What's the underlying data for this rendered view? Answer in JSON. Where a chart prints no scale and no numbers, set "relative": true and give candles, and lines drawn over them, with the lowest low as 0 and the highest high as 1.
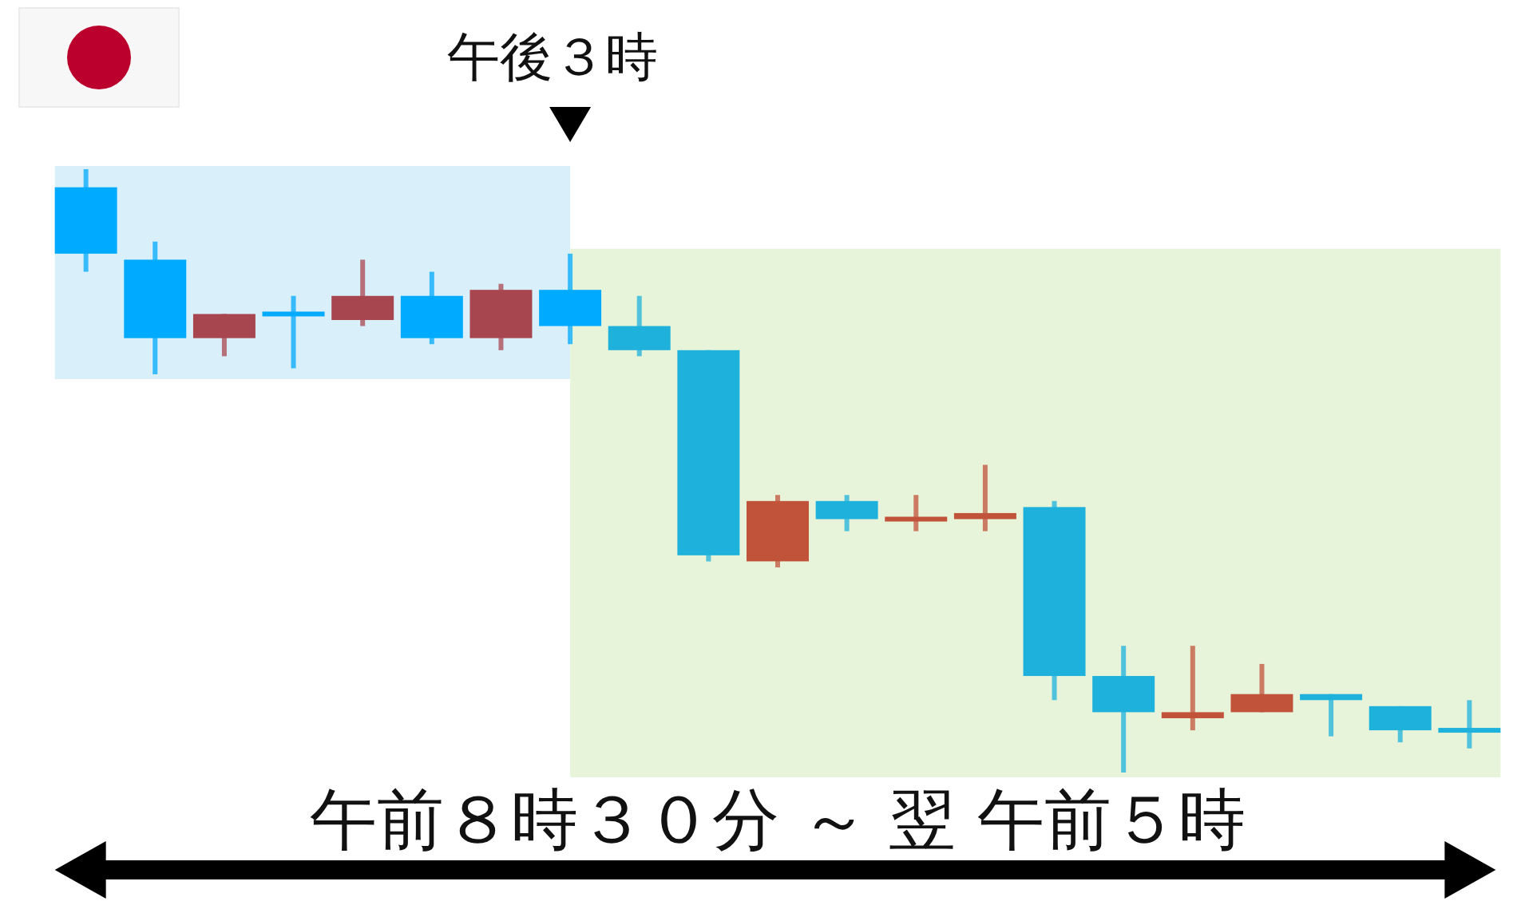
{
  "chart_data": {
    "type": "candlestick",
    "relative": true,
    "tick_labels": false,
    "categories": [
      null,
      null,
      null,
      null,
      null,
      null,
      null,
      null,
      null,
      null,
      null,
      null,
      null,
      null,
      null,
      null,
      null,
      null,
      null,
      null,
      null
    ],
    "ohlc": [
      [
        0.97,
        1.0,
        0.83,
        0.86
      ],
      [
        0.85,
        0.88,
        0.66,
        0.72
      ],
      [
        0.72,
        0.76,
        0.69,
        0.76
      ],
      [
        0.76,
        0.79,
        0.67,
        0.76
      ],
      [
        0.75,
        0.85,
        0.74,
        0.79
      ],
      [
        0.79,
        0.83,
        0.71,
        0.72
      ],
      [
        0.72,
        0.81,
        0.7,
        0.8
      ],
      [
        0.8,
        0.86,
        0.71,
        0.74
      ],
      [
        0.74,
        0.79,
        0.69,
        0.7
      ],
      [
        0.7,
        0.7,
        0.35,
        0.36
      ],
      [
        0.35,
        0.46,
        0.34,
        0.45
      ],
      [
        0.45,
        0.46,
        0.4,
        0.42
      ],
      [
        0.42,
        0.46,
        0.4,
        0.42
      ],
      [
        0.42,
        0.51,
        0.4,
        0.43
      ],
      [
        0.44,
        0.45,
        0.12,
        0.16
      ],
      [
        0.16,
        0.21,
        0.0,
        0.1
      ],
      [
        0.09,
        0.21,
        0.07,
        0.1
      ],
      [
        0.1,
        0.18,
        0.1,
        0.13
      ],
      [
        0.13,
        0.13,
        0.06,
        0.12
      ],
      [
        0.11,
        0.11,
        0.05,
        0.07
      ],
      [
        0.07,
        0.12,
        0.04,
        0.07
      ]
    ],
    "colors": [
      "#00aaff",
      "#00aaff",
      "#a8464f",
      "#00aaff",
      "#a8464f",
      "#00aaff",
      "#a8464f",
      "#00aaff",
      "#1eb1dc",
      "#1eb1dc",
      "#c0533a",
      "#1eb1dc",
      "#c0533a",
      "#c0533a",
      "#1eb1dc",
      "#1eb1dc",
      "#c0533a",
      "#c0533a",
      "#1eb1dc",
      "#1eb1dc",
      "#1eb1dc"
    ],
    "annotations": [
      "午後３時",
      "午前８時３０分 ～ 翌 午前５時"
    ]
  }
}
